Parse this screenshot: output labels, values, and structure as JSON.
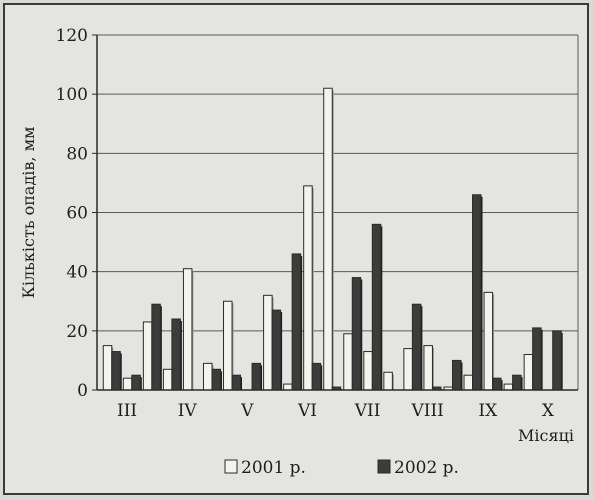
{
  "chart_data": {
    "type": "bar",
    "title": "",
    "xlabel": "Місяці",
    "ylabel": "Кількість опадів, мм",
    "ylim": [
      0,
      120
    ],
    "yticks": [
      0,
      20,
      40,
      60,
      80,
      100,
      120
    ],
    "grid": true,
    "legend_position": "bottom",
    "groups": [
      "III",
      "IV",
      "V",
      "VI",
      "VII",
      "VIII",
      "IX",
      "X"
    ],
    "bars_per_group": 3,
    "series": [
      {
        "name": "2001 р.",
        "color": "#f4f4ef",
        "values": [
          15,
          4,
          23,
          7,
          41,
          9,
          30,
          0,
          32,
          2,
          69,
          102,
          19,
          13,
          6,
          14,
          15,
          1,
          5,
          33,
          2,
          12,
          0,
          0
        ]
      },
      {
        "name": "2002 р.",
        "color": "#3c3c3c",
        "values": [
          13,
          5,
          29,
          24,
          0,
          7,
          5,
          9,
          27,
          46,
          9,
          1,
          38,
          56,
          0,
          29,
          1,
          10,
          66,
          4,
          5,
          21,
          20,
          0
        ]
      }
    ]
  }
}
